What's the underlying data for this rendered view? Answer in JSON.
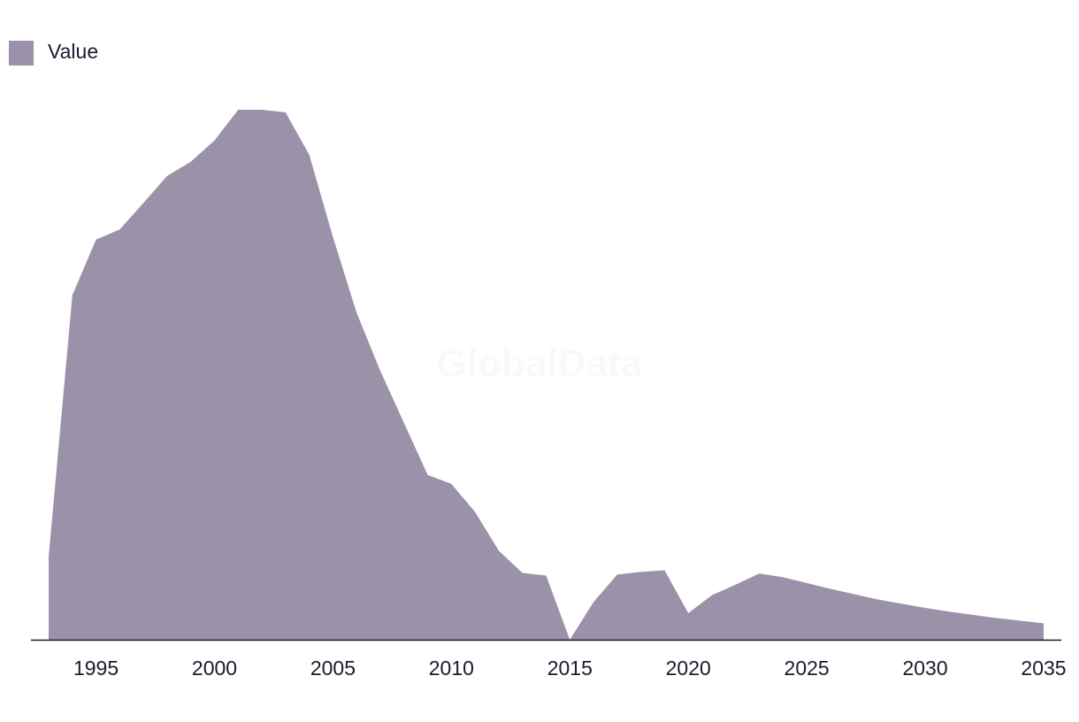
{
  "watermark": "GlobalData",
  "chart_data": {
    "type": "area",
    "legend_position": "top-left",
    "grid": false,
    "xlim": [
      1993,
      2035
    ],
    "ylim": [
      0,
      100
    ],
    "x_ticks": [
      1995,
      2000,
      2005,
      2010,
      2015,
      2020,
      2025,
      2030,
      2035
    ],
    "x": [
      1993,
      1994,
      1995,
      1996,
      1997,
      1998,
      1999,
      2000,
      2001,
      2002,
      2003,
      2004,
      2005,
      2006,
      2007,
      2008,
      2009,
      2010,
      2011,
      2012,
      2013,
      2014,
      2015,
      2016,
      2017,
      2018,
      2019,
      2020,
      2021,
      2022,
      2023,
      2024,
      2025,
      2026,
      2027,
      2028,
      2029,
      2030,
      2031,
      2032,
      2033,
      2034,
      2035
    ],
    "series": [
      {
        "name": "Value",
        "color": "#9b92aa",
        "values": [
          15.7,
          65.0,
          75.5,
          77.4,
          82.4,
          87.5,
          90.2,
          94.2,
          100.0,
          100.0,
          99.5,
          91.5,
          76.0,
          61.7,
          50.7,
          40.9,
          31.1,
          29.4,
          24.1,
          16.8,
          12.6,
          12.1,
          0.0,
          7.1,
          12.3,
          12.8,
          13.1,
          5.0,
          8.4,
          10.4,
          12.5,
          11.8,
          10.7,
          9.6,
          8.6,
          7.6,
          6.8,
          6.0,
          5.3,
          4.7,
          4.1,
          3.6,
          3.1
        ]
      }
    ]
  }
}
